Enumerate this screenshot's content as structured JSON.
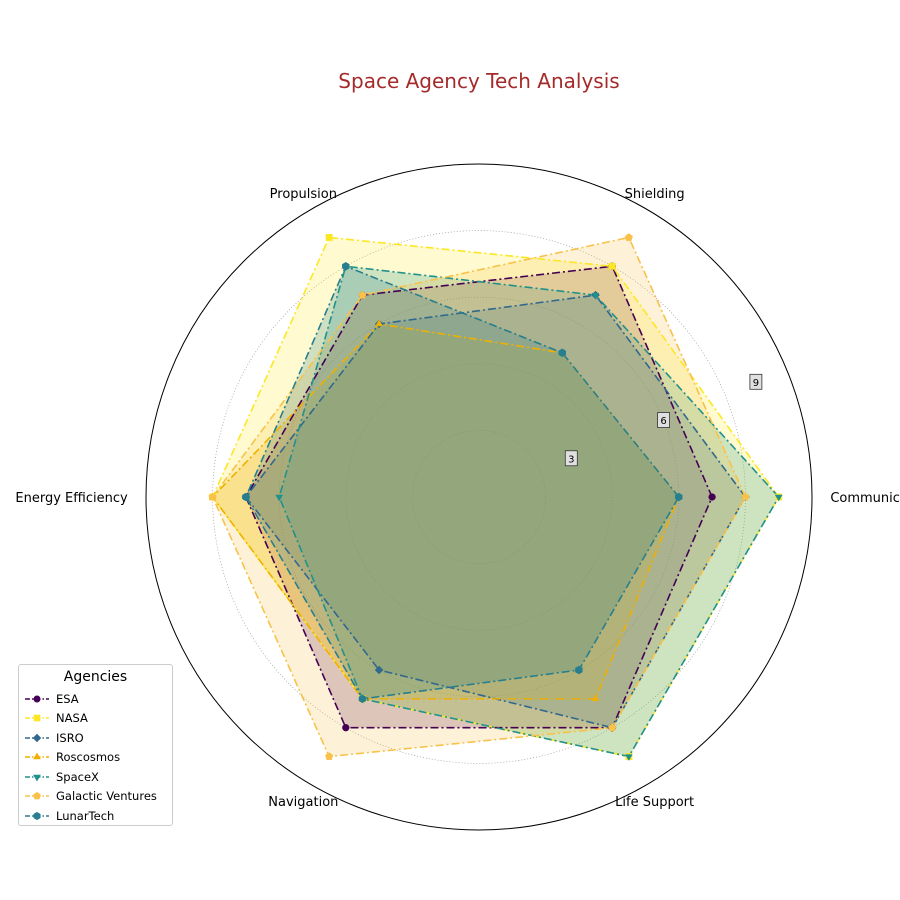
{
  "chart_data": {
    "type": "radar",
    "title": "Space Agency Tech Analysis",
    "axes": [
      "Communication",
      "Shielding",
      "Propulsion",
      "Energy Efficiency",
      "Navigation",
      "Life Support"
    ],
    "rlim": [
      0,
      10
    ],
    "rticks": [
      3,
      6,
      9
    ],
    "grid": true,
    "legend": {
      "title": "Agencies",
      "placement": "lower-left"
    },
    "series": [
      {
        "name": "ESA",
        "values": [
          7,
          8,
          7,
          7,
          8,
          8
        ],
        "color": "#440154",
        "marker": "circle"
      },
      {
        "name": "NASA",
        "values": [
          9,
          8,
          9,
          8,
          7,
          9
        ],
        "color": "#fde725",
        "marker": "square"
      },
      {
        "name": "ISRO",
        "values": [
          8,
          7,
          6,
          7,
          6,
          8
        ],
        "color": "#31688e",
        "marker": "diamond"
      },
      {
        "name": "Roscosmos",
        "values": [
          6,
          5,
          6,
          8,
          7,
          7
        ],
        "color": "#f0b000",
        "marker": "triangle-up"
      },
      {
        "name": "SpaceX",
        "values": [
          9,
          7,
          8,
          6,
          7,
          9
        ],
        "color": "#21918c",
        "marker": "triangle-down"
      },
      {
        "name": "Galactic Ventures",
        "values": [
          8,
          9,
          7,
          8,
          9,
          8
        ],
        "color": "#f8c24a",
        "marker": "pentagon"
      },
      {
        "name": "LunarTech",
        "values": [
          6,
          5,
          8,
          7,
          7,
          6
        ],
        "color": "#277f8e",
        "marker": "hexagon"
      }
    ]
  }
}
